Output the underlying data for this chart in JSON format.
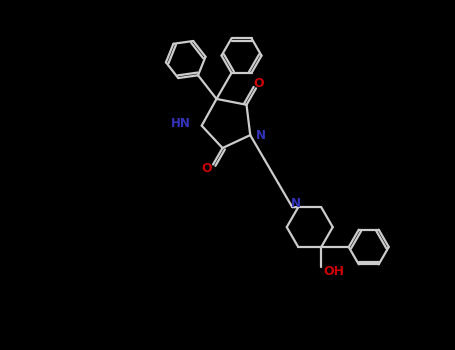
{
  "background_color": "#000000",
  "bond_color": "#cccccc",
  "N_color": "#3333bb",
  "O_color": "#cc0000",
  "lw": 1.6,
  "figsize": [
    4.55,
    3.5
  ],
  "dpi": 100,
  "xlim": [
    0,
    9.1
  ],
  "ylim": [
    0,
    7.0
  ]
}
